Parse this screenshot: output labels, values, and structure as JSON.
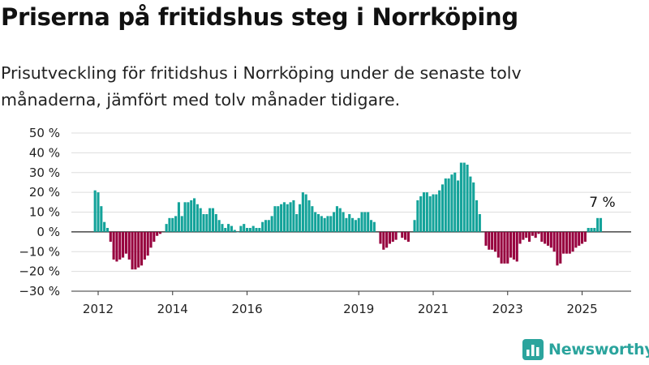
{
  "title": "Priserna på fritidshus steg i Norrköping",
  "subtitle": "Prisutveckling för fritidshus i Norrköping under de senaste tolv månaderna, jämfört med tolv månader tidigare.",
  "brand": {
    "name": "Newsworthy",
    "icon": "bar-chart-logo-icon"
  },
  "colors": {
    "positive": "#14a39a",
    "negative": "#97003e",
    "grid": "#dddddd",
    "zero": "#222222",
    "brand": "#2ba49d"
  },
  "chart_data": {
    "type": "bar",
    "start_month": "2011-12",
    "ylim": [
      -30,
      50
    ],
    "yticks": [
      -30,
      -20,
      -10,
      0,
      10,
      20,
      30,
      40,
      50
    ],
    "ytick_format": "{v} %",
    "xticks": [
      {
        "label": "2012",
        "month": "2012-01"
      },
      {
        "label": "2014",
        "month": "2014-01"
      },
      {
        "label": "2016",
        "month": "2016-01"
      },
      {
        "label": "2019",
        "month": "2019-01"
      },
      {
        "label": "2021",
        "month": "2021-01"
      },
      {
        "label": "2023",
        "month": "2023-01"
      },
      {
        "label": "2025",
        "month": "2025-01"
      }
    ],
    "annotation": {
      "text": "7 %",
      "month": "2025-07",
      "value": 7
    },
    "values": [
      21,
      20,
      13,
      5,
      2,
      -5,
      -14,
      -15,
      -14,
      -13,
      -11,
      -14,
      -19,
      -19,
      -18,
      -17,
      -14,
      -12,
      -8,
      -5,
      -2,
      -1,
      null,
      4,
      7,
      7,
      8,
      15,
      8,
      15,
      15,
      16,
      17,
      14,
      12,
      9,
      9,
      12,
      12,
      9,
      6,
      4,
      2,
      4,
      3,
      1,
      0,
      3,
      4,
      2,
      2,
      3,
      2,
      2,
      5,
      6,
      6,
      8,
      13,
      13,
      14,
      15,
      14,
      15,
      16,
      9,
      14,
      20,
      19,
      16,
      13,
      10,
      9,
      8,
      7,
      8,
      8,
      10,
      13,
      12,
      10,
      7,
      9,
      7,
      6,
      7,
      10,
      10,
      10,
      6,
      5,
      null,
      -6,
      -9,
      -8,
      -6,
      -5,
      -4,
      null,
      -3,
      -4,
      -5,
      null,
      6,
      16,
      18,
      20,
      20,
      18,
      19,
      19,
      21,
      24,
      27,
      27,
      29,
      30,
      26,
      35,
      35,
      34,
      28,
      25,
      16,
      9,
      null,
      -7,
      -9,
      -9,
      -10,
      -13,
      -16,
      -16,
      -16,
      -13,
      -14,
      -15,
      -6,
      -4,
      -3,
      -5,
      -2,
      -3,
      -1,
      -5,
      -6,
      -7,
      -8,
      -10,
      -17,
      -16,
      -11,
      -11,
      -11,
      -10,
      -8,
      -7,
      -6,
      -5,
      2,
      2,
      2,
      7,
      7
    ]
  }
}
